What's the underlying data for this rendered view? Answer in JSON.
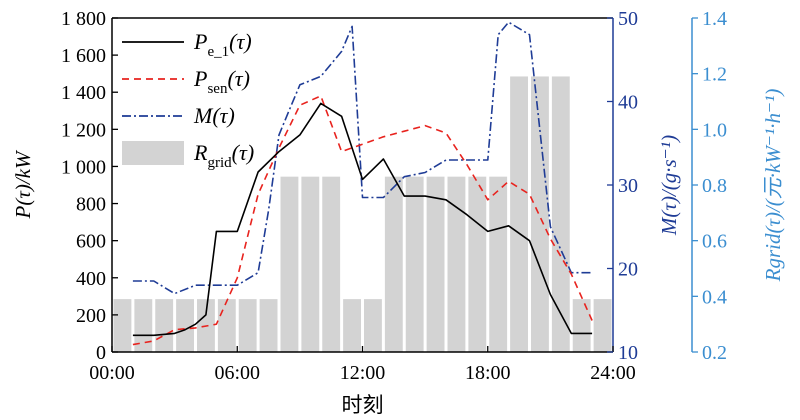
{
  "chart_data": {
    "type": "bar+line",
    "title": "",
    "xlabel": "时刻",
    "x_ticks": [
      "00:00",
      "06:00",
      "12:00",
      "18:00",
      "24:00"
    ],
    "xlim": [
      0,
      24
    ],
    "ylabel_left": "P(τ)/kW",
    "ylim_left": [
      0,
      1800
    ],
    "yticks_left": [
      "0",
      "200",
      "400",
      "600",
      "800",
      "1 000",
      "1 200",
      "1 400",
      "1 600",
      "1 800"
    ],
    "ylabel_right": "M(τ)/(g·s⁻¹)",
    "ylim_right": [
      10,
      50
    ],
    "yticks_right": [
      "10",
      "20",
      "30",
      "40",
      "50"
    ],
    "ylabel_right2": "Rgrid(τ)/(元·kW⁻¹·h⁻¹)",
    "ylim_right2": [
      0.2,
      1.4
    ],
    "yticks_right2": [
      "0.2",
      "0.4",
      "0.6",
      "0.8",
      "1.0",
      "1.2",
      "1.4"
    ],
    "colors": {
      "p_e1": "#000000",
      "p_sen": "#e8231e",
      "m": "#1f3c96",
      "r_grid": "#d3d3d3",
      "axis_right": "#1f3c96",
      "axis_right2": "#3b8ed0"
    },
    "legend": {
      "placement": "top-left",
      "entries": [
        {
          "key": "p_e1",
          "main": "P",
          "sub": "e_1",
          "tail": "(τ)"
        },
        {
          "key": "p_sen",
          "main": "P",
          "sub": "sen",
          "tail": "(τ)"
        },
        {
          "key": "m",
          "main": "M",
          "sub": "",
          "tail": "(τ)"
        },
        {
          "key": "r_grid",
          "main": "R",
          "sub": "grid",
          "tail": "(τ)"
        }
      ]
    },
    "series": [
      {
        "key": "p_e1",
        "kind": "line",
        "axis": "left",
        "x": [
          1,
          2,
          3,
          3.5,
          4,
          4.5,
          5,
          6,
          7,
          8,
          9,
          10,
          11,
          12,
          13,
          14,
          15,
          16,
          17,
          18,
          19,
          20,
          21,
          22,
          23
        ],
        "values": [
          90,
          90,
          100,
          120,
          150,
          200,
          650,
          650,
          970,
          1080,
          1170,
          1340,
          1270,
          930,
          1040,
          840,
          840,
          820,
          740,
          650,
          680,
          600,
          310,
          100,
          100
        ]
      },
      {
        "key": "p_sen",
        "kind": "line",
        "axis": "left",
        "x": [
          1,
          2,
          3,
          4,
          5,
          6,
          7,
          8,
          9,
          10,
          11,
          12,
          13,
          14,
          15,
          16,
          17,
          18,
          19,
          20,
          21,
          22,
          23
        ],
        "values": [
          40,
          60,
          120,
          130,
          150,
          400,
          850,
          1100,
          1330,
          1380,
          1080,
          1120,
          1160,
          1190,
          1220,
          1180,
          1010,
          820,
          920,
          850,
          610,
          420,
          170
        ]
      },
      {
        "key": "m",
        "kind": "line",
        "axis": "right",
        "x": [
          1,
          2,
          3,
          4,
          5,
          6,
          7,
          7.5,
          8,
          8.5,
          9,
          10,
          11,
          11.5,
          12,
          13,
          14,
          15,
          16,
          17,
          18,
          18.5,
          19,
          20,
          21,
          22,
          23
        ],
        "values": [
          18.5,
          18.5,
          17,
          18,
          18,
          18,
          19.5,
          27,
          36,
          39,
          42,
          43,
          46,
          49,
          28.5,
          28.5,
          31,
          31.5,
          33,
          33,
          33,
          48,
          49.5,
          48,
          25,
          19.5,
          19.5
        ]
      },
      {
        "key": "r_grid",
        "kind": "bar",
        "axis": "right2",
        "categories": [
          0,
          1,
          2,
          3,
          4,
          5,
          6,
          7,
          8,
          9,
          10,
          11,
          12,
          13,
          14,
          15,
          16,
          17,
          18,
          19,
          20,
          21,
          22,
          23
        ],
        "values": [
          0.39,
          0.39,
          0.39,
          0.39,
          0.39,
          0.39,
          0.39,
          0.39,
          0.83,
          0.83,
          0.83,
          0.39,
          0.39,
          0.83,
          0.83,
          0.83,
          0.83,
          0.83,
          0.83,
          1.19,
          1.19,
          1.19,
          0.39,
          0.39
        ]
      }
    ]
  }
}
